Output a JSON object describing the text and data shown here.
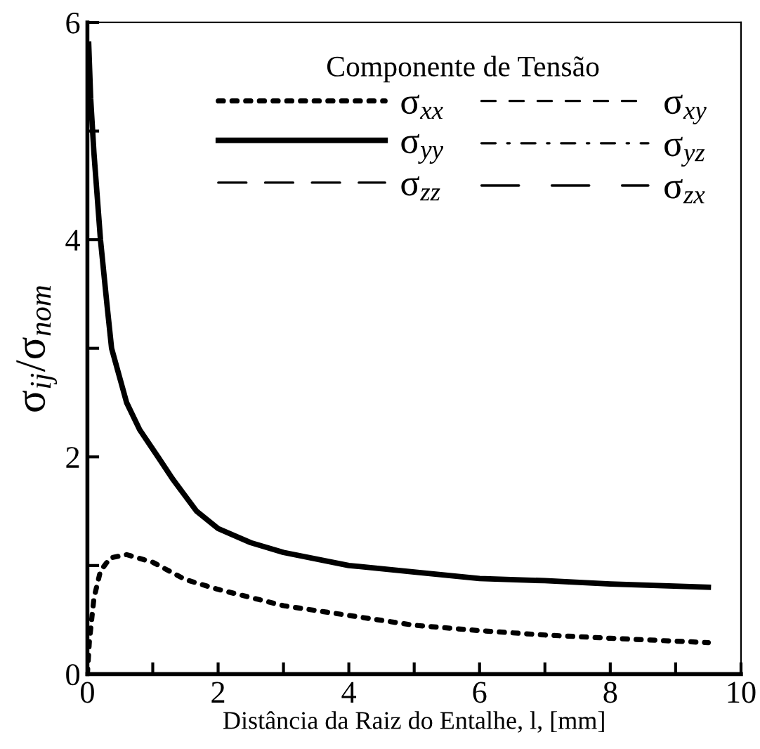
{
  "chart_data": {
    "type": "line",
    "xlabel": "Distância da Raiz do Entalhe, l, [mm]",
    "ylabel": "σ$_{ij}$/σ$_{nom}$",
    "legend_title": "Componente de Tensão",
    "legend": "top right",
    "xlim": [
      0,
      10
    ],
    "xticks": [
      0,
      {
        "value": 1,
        "label": null
      },
      2,
      {
        "value": 3,
        "label": null
      },
      4,
      {
        "value": 5,
        "label": null
      },
      6,
      {
        "value": 7,
        "label": null
      },
      8,
      {
        "value": 9,
        "label": null
      },
      10
    ],
    "ylim": [
      0,
      6
    ],
    "yticks": [
      0,
      {
        "value": 1,
        "label": null
      },
      2,
      {
        "value": 3,
        "label": null
      },
      4,
      {
        "value": 5,
        "label": null
      },
      6
    ],
    "grid": false,
    "series": [
      {
        "name": "σ$_{xx}$",
        "color": "#000000",
        "line_style": "dotted",
        "x": [
          0,
          0.03,
          0.1,
          0.2,
          0.35,
          0.6,
          1,
          1.5,
          2,
          3,
          4,
          5,
          6,
          7,
          8,
          9.5
        ],
        "values": [
          0,
          0.3,
          0.7,
          0.95,
          1.07,
          1.1,
          1.03,
          0.87,
          0.78,
          0.63,
          0.54,
          0.45,
          0.4,
          0.36,
          0.33,
          0.29
        ]
      },
      {
        "name": "σ$_{xy}$",
        "color": "#000000",
        "line_style": "dashed"
      },
      {
        "name": "σ$_{yy}$",
        "color": "#000000",
        "line_style": "solid",
        "x": [
          0.02,
          0.05,
          0.1,
          0.2,
          0.3,
          0.37,
          0.6,
          0.8,
          1.08,
          1.3,
          1.67,
          2,
          2.5,
          3,
          4,
          5,
          6,
          7,
          8,
          9.5
        ],
        "values": [
          5.8,
          5.3,
          4.8,
          4.0,
          3.4,
          3.0,
          2.5,
          2.25,
          2.0,
          1.8,
          1.5,
          1.34,
          1.21,
          1.12,
          1.0,
          0.94,
          0.88,
          0.86,
          0.83,
          0.8
        ]
      },
      {
        "name": "σ$_{yz}$",
        "color": "#000000",
        "line_style": "dashdot"
      },
      {
        "name": "σ$_{zz}$",
        "color": "#000000",
        "line_style": "longdash"
      },
      {
        "name": "σ$_{zx}$",
        "color": "#000000",
        "line_style": "longerdash"
      }
    ]
  }
}
